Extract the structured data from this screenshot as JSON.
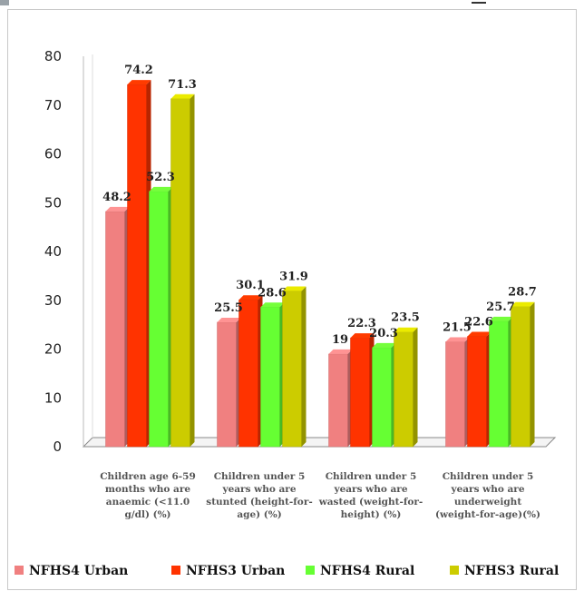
{
  "chart_data": {
    "type": "bar",
    "title": "",
    "xlabel": "",
    "ylabel": "",
    "ylim": [
      0,
      80
    ],
    "yticks": [
      0,
      10,
      20,
      30,
      40,
      50,
      60,
      70,
      80
    ],
    "grid": false,
    "legend_position": "bottom",
    "categories": [
      [
        "Children age 6-59",
        "months who are",
        "anaemic (<11.0",
        "g/dl) (%)"
      ],
      [
        "Children under 5",
        "years who are",
        "stunted (height-for-",
        "age) (%)"
      ],
      [
        "Children under 5",
        "years who are",
        "wasted (weight-for-",
        "height) (%)"
      ],
      [
        "Children under 5",
        "years who are",
        "underweight",
        "(weight-for-age)(%)"
      ]
    ],
    "series": [
      {
        "name": "NFHS4 Urban",
        "color": "#f08080",
        "values": [
          48.2,
          25.5,
          19,
          21.5
        ],
        "labels": [
          "48.2",
          "25.5",
          "19",
          "21.5"
        ]
      },
      {
        "name": "NFHS3 Urban",
        "color": "#ff3300",
        "values": [
          74.2,
          30.1,
          22.3,
          22.6
        ],
        "labels": [
          "74.2",
          "30.1",
          "22.3",
          "22.6"
        ]
      },
      {
        "name": "NFHS4 Rural",
        "color": "#66ff33",
        "values": [
          52.3,
          28.6,
          20.3,
          25.7
        ],
        "labels": [
          "52.3",
          "28.6",
          "20.3",
          "25.7"
        ]
      },
      {
        "name": "NFHS3 Rural",
        "color": "#cccc00",
        "values": [
          71.3,
          31.9,
          23.5,
          28.7
        ],
        "labels": [
          "71.3",
          "31.9",
          "23.5",
          "28.7"
        ]
      }
    ]
  }
}
